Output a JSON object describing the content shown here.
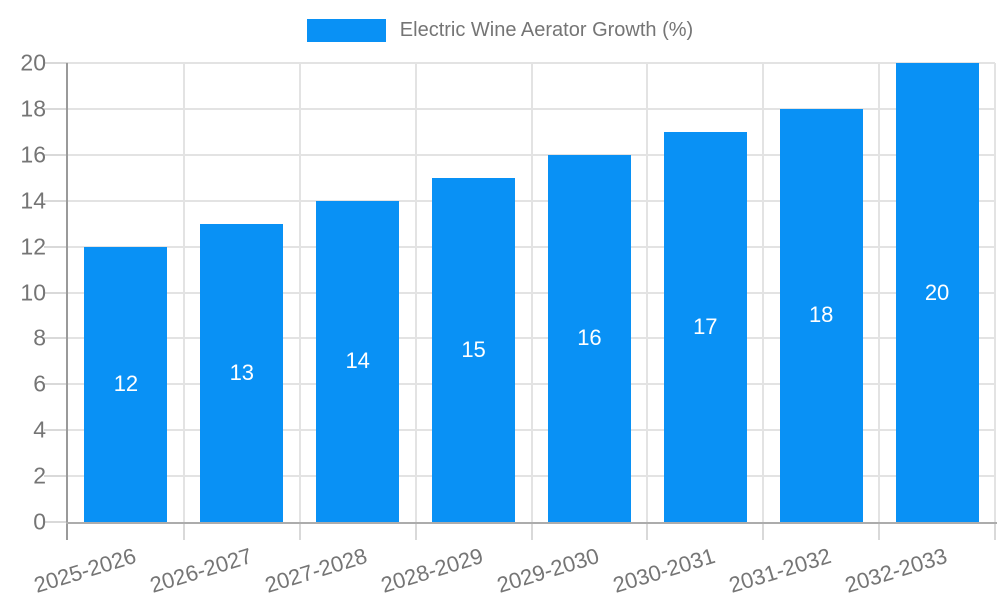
{
  "chart_data": {
    "type": "bar",
    "title": "Electric Wine Aerator Growth (%)",
    "legend": [
      "Electric Wine Aerator Growth (%)"
    ],
    "legend_position": "top-center",
    "categories": [
      "2025-2026",
      "2026-2027",
      "2027-2028",
      "2028-2029",
      "2029-2030",
      "2030-2031",
      "2031-2032",
      "2032-2033"
    ],
    "values": [
      12,
      13,
      14,
      15,
      16,
      17,
      18,
      20
    ],
    "bar_value_labels": [
      "12",
      "13",
      "14",
      "15",
      "16",
      "17",
      "18",
      "20"
    ],
    "xlabel": "",
    "ylabel": "",
    "ylim": [
      0,
      20
    ],
    "yticks": [
      0,
      2,
      4,
      6,
      8,
      10,
      12,
      14,
      16,
      18,
      20
    ],
    "grid": true,
    "x_label_rotation_deg": -17,
    "colors": {
      "bar": "#0991F5",
      "bar_label": "#FFFFFF",
      "legend_text": "#757575",
      "axis_text": "#757575",
      "gridline": "#E3E3E3",
      "tick": "#D9D9D9",
      "y_axis_line": "#9A9A9A",
      "x_axis_line": "#ACACAC",
      "background": "#FFFFFF"
    }
  }
}
